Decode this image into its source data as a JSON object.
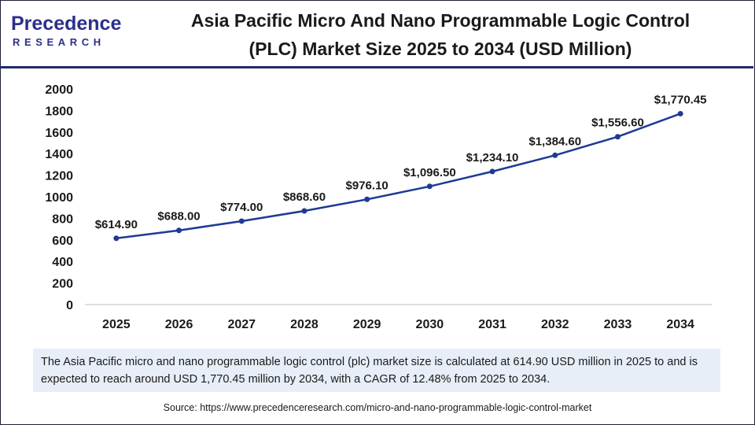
{
  "logo": {
    "name": "Precedence",
    "sub": "RESEARCH"
  },
  "header": {
    "title_line1": "Asia Pacific Micro And Nano Programmable Logic Control",
    "title_line2": "(PLC) Market Size 2025 to 2034 (USD Million)"
  },
  "chart_data": {
    "type": "line",
    "title": "Asia Pacific Micro And Nano Programmable Logic Control (PLC) Market Size 2025 to 2034 (USD Million)",
    "xlabel": "",
    "ylabel": "",
    "categories": [
      "2025",
      "2026",
      "2027",
      "2028",
      "2029",
      "2030",
      "2031",
      "2032",
      "2033",
      "2034"
    ],
    "values": [
      614.9,
      688.0,
      774.0,
      868.6,
      976.1,
      1096.5,
      1234.1,
      1384.6,
      1556.6,
      1770.45
    ],
    "data_labels": [
      "$614.90",
      "$688.00",
      "$774.00",
      "$868.60",
      "$976.10",
      "$1,096.50",
      "$1,234.10",
      "$1,384.60",
      "$1,556.60",
      "$1,770.45"
    ],
    "ylim": [
      0,
      2000
    ],
    "yticks": [
      0,
      200,
      400,
      600,
      800,
      1000,
      1200,
      1400,
      1600,
      1800,
      2000
    ],
    "grid": false,
    "line_color": "#1f3a93"
  },
  "summary": {
    "text": "The Asia Pacific micro and nano programmable logic control (plc) market size is calculated at 614.90 USD million in 2025 to and is expected to reach around USD 1,770.45 million by 2034, with a CAGR of 12.48% from 2025 to 2034."
  },
  "source": {
    "text": "Source: https://www.precedenceresearch.com/micro-and-nano-programmable-logic-control-market"
  }
}
